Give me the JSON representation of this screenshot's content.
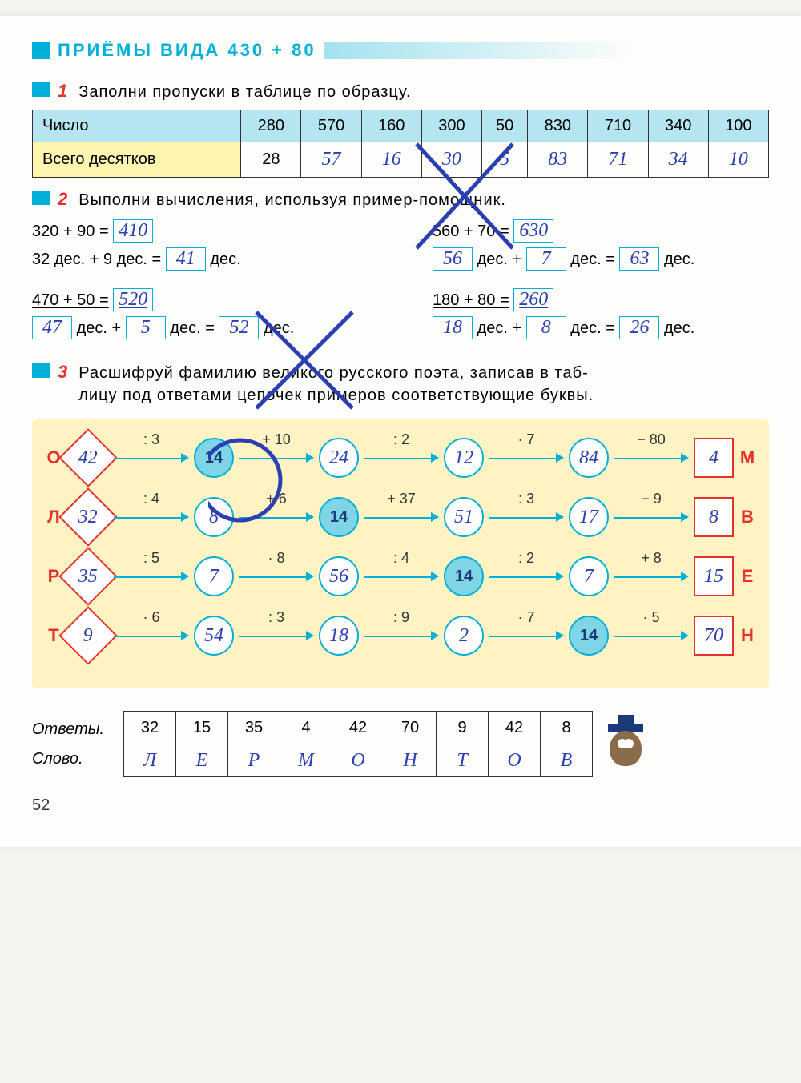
{
  "title": "ПРИЁМЫ  ВИДА  430 + 80",
  "page_number": "52",
  "colors": {
    "cyan": "#00b0d9",
    "red": "#e5302b",
    "pen": "#2a3fb0",
    "yellow_cell": "#fff4b0",
    "blue_cell": "#b4e5f0",
    "chain_bg": "#fff3c4"
  },
  "ex1": {
    "num": "1",
    "text": "Заполни  пропуски  в  таблице  по  образцу.",
    "row1_label": "Число",
    "row2_label": "Всего десятков",
    "numbers": [
      "280",
      "570",
      "160",
      "300",
      "50",
      "830",
      "710",
      "340",
      "100"
    ],
    "tens": [
      "28",
      "57",
      "16",
      "30",
      "5",
      "83",
      "71",
      "34",
      "10"
    ],
    "tens_printed_first": "28"
  },
  "ex2": {
    "num": "2",
    "text": "Выполни  вычисления,  используя  пример-помощник.",
    "rows": [
      {
        "left_top": "320 + 90 =",
        "left_top_ans": "410",
        "left_bot_pre": "32 дес. + 9 дес. =",
        "left_bot_ans": "41",
        "left_bot_post": "дес.",
        "right_top": "560 + 70 =",
        "right_top_ans": "630",
        "right_bot_a": "56",
        "right_bot_mid1": "дес. +",
        "right_bot_b": "7",
        "right_bot_mid2": "дес. =",
        "right_bot_c": "63",
        "right_bot_post": "дес."
      },
      {
        "left_top": "470 + 50 =",
        "left_top_ans": "520",
        "left_bot_a": "47",
        "left_bot_mid1": "дес. +",
        "left_bot_b": "5",
        "left_bot_mid2": "дес. =",
        "left_bot_c": "52",
        "left_bot_post": "дес.",
        "right_top": "180 + 80 =",
        "right_top_ans": "260",
        "right_bot_a": "18",
        "right_bot_mid1": "дес. +",
        "right_bot_b": "8",
        "right_bot_mid2": "дес. =",
        "right_bot_c": "26",
        "right_bot_post": "дес."
      }
    ]
  },
  "ex3": {
    "num": "3",
    "text1": "Расшифруй  фамилию  великого  русского  поэта,  записав  в  таб-",
    "text2": "лицу  под  ответами  цепочек  примеров  соответствующие  буквы.",
    "chains": [
      {
        "ll": "О",
        "lr": "М",
        "start": "42",
        "ops": [
          ": 3",
          "+ 10",
          ": 2",
          "· 7",
          "− 80"
        ],
        "vals": [
          "14",
          "24",
          "12",
          "84"
        ],
        "end": "4",
        "fixed_idx": 0
      },
      {
        "ll": "Л",
        "lr": "В",
        "start": "32",
        "ops": [
          ": 4",
          "+ 6",
          "+ 37",
          ": 3",
          "− 9"
        ],
        "vals": [
          "8",
          "14",
          "51",
          "17"
        ],
        "end": "8",
        "fixed_idx": 1
      },
      {
        "ll": "Р",
        "lr": "Е",
        "start": "35",
        "ops": [
          ": 5",
          "· 8",
          ": 4",
          ": 2",
          "+ 8"
        ],
        "vals": [
          "7",
          "56",
          "14",
          "7"
        ],
        "end": "15",
        "fixed_idx": 2
      },
      {
        "ll": "Т",
        "lr": "Н",
        "start": "9",
        "ops": [
          "· 6",
          ": 3",
          ": 9",
          "· 7",
          "· 5"
        ],
        "vals": [
          "54",
          "18",
          "2",
          "14"
        ],
        "end": "70",
        "fixed_idx": 3
      }
    ]
  },
  "answers": {
    "label1": "Ответы.",
    "label2": "Слово.",
    "nums": [
      "32",
      "15",
      "35",
      "4",
      "42",
      "70",
      "9",
      "42",
      "8"
    ],
    "letters": [
      "Л",
      "Е",
      "Р",
      "М",
      "О",
      "Н",
      "Т",
      "О",
      "В"
    ]
  }
}
